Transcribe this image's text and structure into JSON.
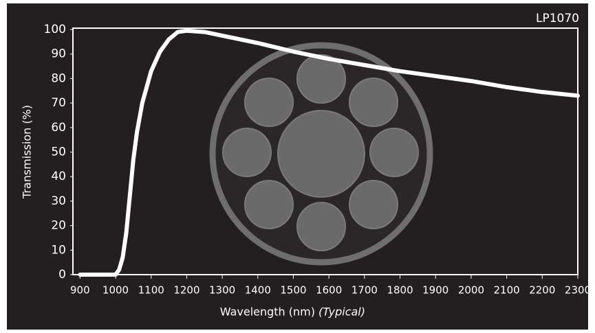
{
  "chart_data": {
    "type": "line",
    "title": "LP1070",
    "x_label": "Wavelength (nm)",
    "x_label_note": "(Typical)",
    "y_label": "Transmission (%)",
    "x": [
      900,
      1000,
      1010,
      1020,
      1030,
      1040,
      1050,
      1060,
      1075,
      1100,
      1125,
      1150,
      1175,
      1200,
      1250,
      1300,
      1400,
      1500,
      1600,
      1700,
      1800,
      1900,
      2000,
      2100,
      2200,
      2300
    ],
    "series": [
      {
        "name": "LP1070",
        "color": "#ffffff",
        "values": [
          0,
          0,
          2,
          7,
          17,
          32,
          47,
          58,
          70,
          83,
          91,
          96,
          99,
          99.5,
          99,
          97.5,
          94.5,
          91,
          88,
          85.5,
          83,
          81,
          79,
          76.5,
          74.5,
          73
        ]
      }
    ],
    "xlim": [
      880,
      2300
    ],
    "ylim": [
      0,
      100
    ],
    "xticks": [
      900,
      1000,
      1100,
      1200,
      1300,
      1400,
      1500,
      1600,
      1700,
      1800,
      1900,
      2000,
      2100,
      2200,
      2300
    ],
    "yticks": [
      0,
      10,
      20,
      30,
      40,
      50,
      60,
      70,
      80,
      90,
      100
    ],
    "grid": false
  }
}
